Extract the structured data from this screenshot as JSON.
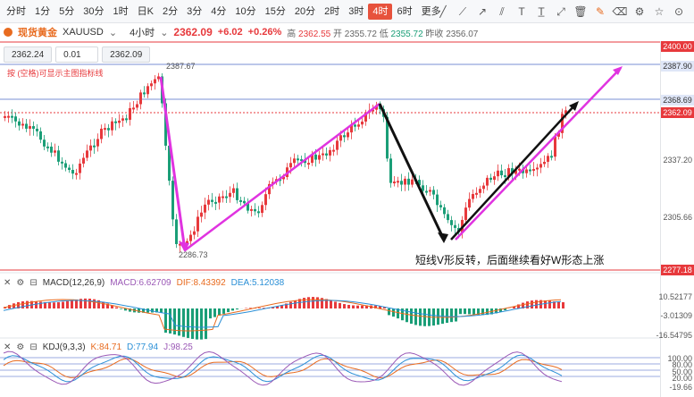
{
  "timeframes": [
    "分时",
    "1分",
    "5分",
    "30分",
    "1时",
    "日K",
    "2分",
    "3分",
    "4分",
    "10分",
    "15分",
    "20分",
    "2时",
    "3时",
    "4时",
    "6时",
    "更多"
  ],
  "active_timeframe": "4时",
  "tool_icons": [
    "draw-line-icon",
    "slash-icon",
    "ray-icon",
    "parallel-lines-icon",
    "text-tool-icon",
    "label-tool-icon",
    "measure-icon",
    "trash-icon",
    "edit-icon",
    "eraser-icon",
    "settings-icon",
    "star-icon",
    "magnet-icon"
  ],
  "header": {
    "symbol_name": "现货黄金",
    "symbol_code": "XAUUSD",
    "period": "4小时",
    "price": "2362.09",
    "change": "+6.02",
    "change_pct": "+0.26%",
    "high_label": "高",
    "high": "2362.55",
    "open_label": "开",
    "open": "2355.72",
    "low_label": "低",
    "low": "2355.72",
    "prev_label": "昨收",
    "prev": "2356.07"
  },
  "order_boxes": {
    "bid": "2362.24",
    "qty": "0.01",
    "ask": "2362.09"
  },
  "hint": "按 (空格)可显示主图指标线",
  "annotation": "短线V形反转，后面继续看好W形态上涨",
  "main_axis": {
    "ticks": [
      "2337.20",
      "2305.66"
    ],
    "tags": [
      {
        "label": "2400.00",
        "color": "#e7393c",
        "text": "#fff"
      },
      {
        "label": "2387.90",
        "color": "#dfe6f7",
        "text": "#333"
      },
      {
        "label": "2368.69",
        "color": "#dfe6f7",
        "text": "#333"
      },
      {
        "label": "2362.09",
        "color": "#e7393c",
        "text": "#fff"
      },
      {
        "label": "2277.18",
        "color": "#e7393c",
        "text": "#fff"
      }
    ]
  },
  "hi_label": "2387.67",
  "lo_label": "2286.73",
  "macd": {
    "title": "MACD(12,26,9)",
    "macd_label": "MACD:6.62709",
    "dif_label": "DIF:8.43392",
    "dea_label": "DEA:5.12038",
    "ticks": [
      "10.52177",
      "-3.01309",
      "-16.54795"
    ]
  },
  "kdj": {
    "title": "KDJ(9,3,3)",
    "k_label": "K:84.71",
    "d_label": "D:77.94",
    "j_label": "J:98.25",
    "ticks": [
      "100.00",
      "80.00",
      "50.00",
      "20.00",
      "-19.66"
    ]
  },
  "colors": {
    "up": "#e7393c",
    "down": "#1a9e77",
    "accent": "#e86b1f",
    "magenta": "#e033e0"
  }
}
